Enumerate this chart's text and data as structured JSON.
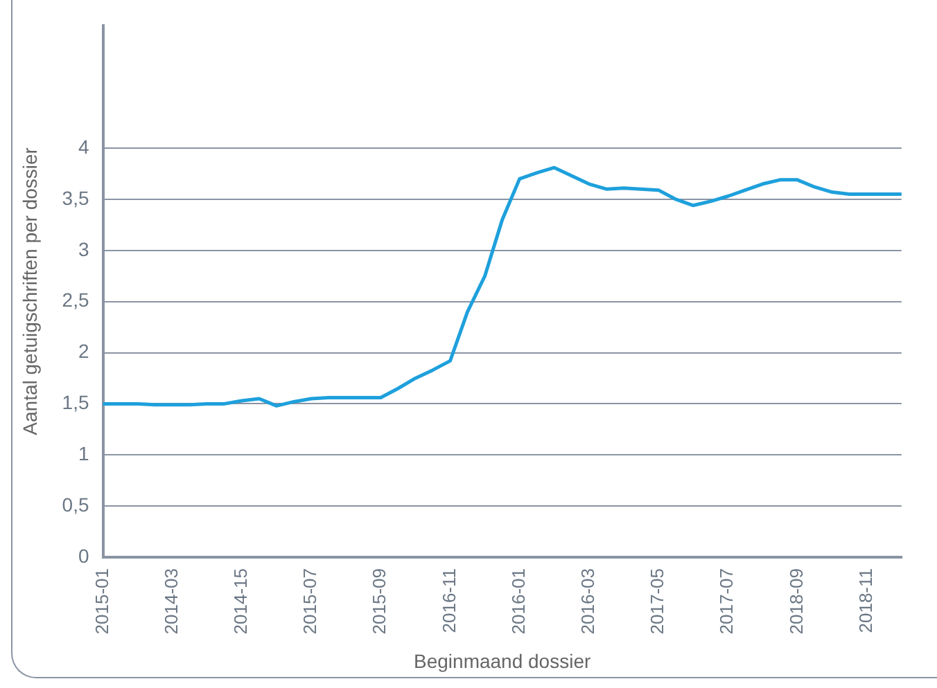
{
  "chart_data": {
    "type": "line",
    "xlabel": "Beginmaand dossier",
    "ylabel": "Aantal getuigschriften per dossier",
    "categories": [
      "2015-01",
      null,
      null,
      null,
      "2014-03",
      null,
      null,
      null,
      "2014-15",
      null,
      null,
      null,
      "2015-07",
      null,
      null,
      null,
      "2015-09",
      null,
      null,
      null,
      "2016-11",
      null,
      null,
      null,
      "2016-01",
      null,
      null,
      null,
      "2016-03",
      null,
      null,
      null,
      "2017-05",
      null,
      null,
      null,
      "2017-07",
      null,
      null,
      null,
      "2018-09",
      null,
      null,
      null,
      "2018-11",
      null,
      null
    ],
    "series": [
      {
        "color": "#1ea0dc",
        "values": [
          1.5,
          1.5,
          1.5,
          1.49,
          1.49,
          1.49,
          1.5,
          1.5,
          1.53,
          1.55,
          1.48,
          1.52,
          1.55,
          1.56,
          1.56,
          1.56,
          1.56,
          1.65,
          1.75,
          1.83,
          1.92,
          2.4,
          2.75,
          3.3,
          3.7,
          3.76,
          3.81,
          3.73,
          3.65,
          3.6,
          3.61,
          3.6,
          3.59,
          3.5,
          3.44,
          3.48,
          3.53,
          3.59,
          3.65,
          3.69,
          3.69,
          3.62,
          3.57,
          3.55,
          3.55,
          3.55,
          3.55
        ]
      }
    ],
    "ylim": [
      0,
      5.2
    ],
    "yticks": [
      0,
      {
        "value": 0.5,
        "label": "0,5"
      },
      1,
      {
        "value": 1.5,
        "label": "1,5"
      },
      2,
      {
        "value": 2.5,
        "label": "2,5"
      },
      3,
      {
        "value": 3.5,
        "label": "3,5"
      },
      4
    ],
    "grid": "y",
    "legend": false,
    "marker": "none",
    "line_style": "solid"
  }
}
